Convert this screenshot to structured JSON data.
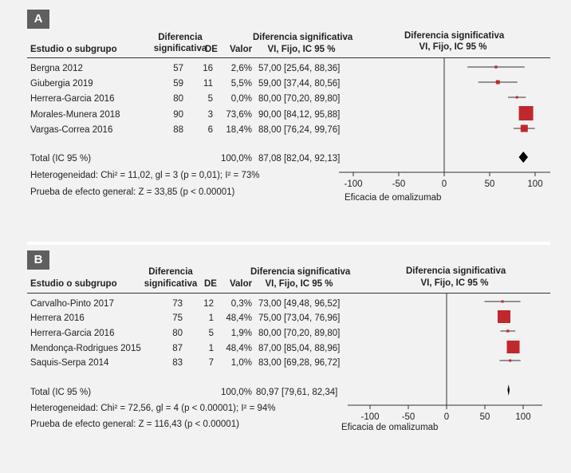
{
  "panels": [
    {
      "label": "A",
      "headers": {
        "study": "Estudio o subgrupo",
        "diff_line1": "Diferencia",
        "diff_line2": "significativa",
        "de": "DE",
        "valor": "Valor",
        "ci_line1": "Diferencia significativa",
        "ci_line2": "VI, Fijo, IC 95 %",
        "plot_line1": "Diferencia significativa",
        "plot_line2": "VI, Fijo, IC 95 %"
      },
      "rows": [
        {
          "study": "Bergna 2012",
          "mean": "57",
          "de": "16",
          "weight": "2,6%",
          "ci": "57,00 [25,64, 88,36]"
        },
        {
          "study": "Giubergia 2019",
          "mean": "59",
          "de": "11",
          "weight": "5,5%",
          "ci": "59,00 [37,44, 80,56]"
        },
        {
          "study": "Herrera-Garcia 2016",
          "mean": "80",
          "de": "5",
          "weight": "0,0%",
          "ci": "80,00 [70,20, 89,80]"
        },
        {
          "study": "Morales-Munera 2018",
          "mean": "90",
          "de": "3",
          "weight": "73,6%",
          "ci": "90,00 [84,12, 95,88]"
        },
        {
          "study": "Vargas-Correa 2016",
          "mean": "88",
          "de": "6",
          "weight": "18,4%",
          "ci": "88,00 [76,24, 99,76]"
        }
      ],
      "total": {
        "label": "Total (IC 95 %)",
        "weight": "100,0%",
        "ci": "87,08 [82,04, 92,13]"
      },
      "heterogeneity": "Heterogeneidad: Chi² = 11,02, gl = 3 (p = 0,01); I² = 73%",
      "overall_test": "Prueba de efecto general: Z = 33,85 (p < 0.00001)",
      "axis_label": "Eficacia de omalizumab"
    },
    {
      "label": "B",
      "headers": {
        "study": "Estudio o subgrupo",
        "diff_line1": "Diferencia",
        "diff_line2": "significativa",
        "de": "DE",
        "valor": "Valor",
        "ci_line1": "Diferencia significativa",
        "ci_line2": "VI, Fijo, IC 95 %",
        "plot_line1": "Diferencia significativa",
        "plot_line2": "VI, Fijo, IC 95 %"
      },
      "rows": [
        {
          "study": "Carvalho-Pinto 2017",
          "mean": "73",
          "de": "12",
          "weight": "0,3%",
          "ci": "73,00 [49,48, 96,52]"
        },
        {
          "study": "Herrera 2016",
          "mean": "75",
          "de": "1",
          "weight": "48,4%",
          "ci": "75,00 [73,04, 76,96]"
        },
        {
          "study": "Herrera-Garcia 2016",
          "mean": "80",
          "de": "5",
          "weight": "1,9%",
          "ci": "80,00 [70,20, 89,80]"
        },
        {
          "study": "Mendonça-Rodrigues 2015",
          "mean": "87",
          "de": "1",
          "weight": "48,4%",
          "ci": "87,00 [85,04, 88,96]"
        },
        {
          "study": "Saquis-Serpa 2014",
          "mean": "83",
          "de": "7",
          "weight": "1,0%",
          "ci": "83,00 [69,28, 96,72]"
        }
      ],
      "total": {
        "label": "Total (IC 95 %)",
        "weight": "100,0%",
        "ci": "80,97 [79,61, 82,34]"
      },
      "heterogeneity": "Heterogeneidad: Chi² = 72,56, gl = 4 (p < 0.00001); I² = 94%",
      "overall_test": "Prueba de efecto general: Z = 116,43 (p < 0.00001)",
      "axis_label": "Eficacia de omalizumab"
    }
  ],
  "chart_data": [
    {
      "type": "forest",
      "panel": "A",
      "xlim": [
        -100,
        100
      ],
      "ticks": [
        -100,
        -50,
        0,
        50,
        100
      ],
      "xlabel": "Eficacia de omalizumab",
      "studies": [
        {
          "name": "Bergna 2012",
          "est": 57.0,
          "lo": 25.64,
          "hi": 88.36,
          "weight": 2.6
        },
        {
          "name": "Giubergia 2019",
          "est": 59.0,
          "lo": 37.44,
          "hi": 80.56,
          "weight": 5.5
        },
        {
          "name": "Herrera-Garcia 2016",
          "est": 80.0,
          "lo": 70.2,
          "hi": 89.8,
          "weight": 0.0
        },
        {
          "name": "Morales-Munera 2018",
          "est": 90.0,
          "lo": 84.12,
          "hi": 95.88,
          "weight": 73.6
        },
        {
          "name": "Vargas-Correa 2016",
          "est": 88.0,
          "lo": 76.24,
          "hi": 99.76,
          "weight": 18.4
        }
      ],
      "pooled": {
        "est": 87.08,
        "lo": 82.04,
        "hi": 92.13
      },
      "colors": {
        "marker": "#c0282d",
        "diamond": "#000000",
        "line": "#333333"
      }
    },
    {
      "type": "forest",
      "panel": "B",
      "xlim": [
        -100,
        100
      ],
      "ticks": [
        -100,
        -50,
        0,
        50,
        100
      ],
      "xlabel": "Eficacia de omalizumab",
      "studies": [
        {
          "name": "Carvalho-Pinto 2017",
          "est": 73.0,
          "lo": 49.48,
          "hi": 96.52,
          "weight": 0.3
        },
        {
          "name": "Herrera 2016",
          "est": 75.0,
          "lo": 73.04,
          "hi": 76.96,
          "weight": 48.4
        },
        {
          "name": "Herrera-Garcia 2016",
          "est": 80.0,
          "lo": 70.2,
          "hi": 89.8,
          "weight": 1.9
        },
        {
          "name": "Mendonça-Rodrigues 2015",
          "est": 87.0,
          "lo": 85.04,
          "hi": 88.96,
          "weight": 48.4
        },
        {
          "name": "Saquis-Serpa 2014",
          "est": 83.0,
          "lo": 69.28,
          "hi": 96.72,
          "weight": 1.0
        }
      ],
      "pooled": {
        "est": 80.97,
        "lo": 79.61,
        "hi": 82.34
      },
      "colors": {
        "marker": "#c0282d",
        "diamond": "#000000",
        "line": "#333333"
      }
    }
  ]
}
